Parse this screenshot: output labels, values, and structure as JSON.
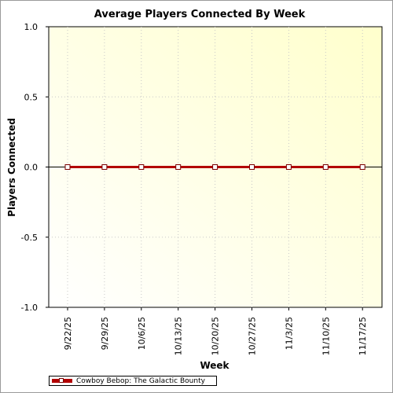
{
  "chart_data": {
    "type": "line",
    "title": "Average Players Connected By Week",
    "xlabel": "Week",
    "ylabel": "Players Connected",
    "categories": [
      "9/22/25",
      "9/29/25",
      "10/6/25",
      "10/13/25",
      "10/20/25",
      "10/27/25",
      "11/3/25",
      "11/10/25",
      "11/17/25"
    ],
    "series": [
      {
        "name": "Cowboy Bebop: The Galactic Bounty",
        "values": [
          0,
          0,
          0,
          0,
          0,
          0,
          0,
          0,
          0
        ],
        "color": "#b30000"
      }
    ],
    "ylim": [
      -1.0,
      1.0
    ],
    "yticks": [
      "1.0",
      "0.5",
      "0.0",
      "-0.5",
      "-1.0"
    ],
    "grid": true,
    "legend": "bottom-left",
    "background_colors": [
      "#ffffff",
      "#ffffcc"
    ]
  }
}
